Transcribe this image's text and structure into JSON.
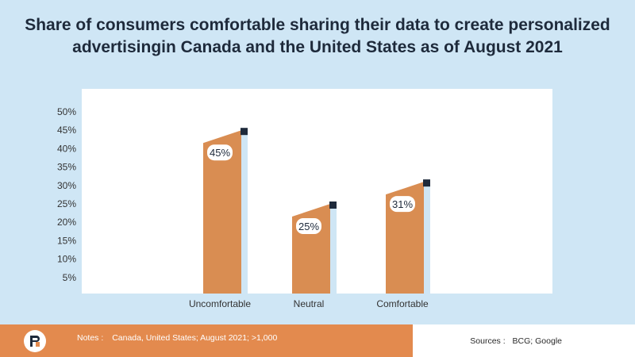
{
  "title_lines": [
    "Share of consumers comfortable sharing their data to create personalized",
    "advertisingin Canada and the United States as of August 2021"
  ],
  "chart_data": {
    "type": "bar",
    "title": "Share of consumers comfortable sharing their data to create personalized advertisingin Canada and the United States as of August 2021",
    "categories": [
      "Uncomfortable",
      "Neutral",
      "Comfortable"
    ],
    "values": [
      45,
      25,
      31
    ],
    "data_labels": [
      "45%",
      "25%",
      "31%"
    ],
    "y_ticks": [
      {
        "value": 5,
        "label": "5%"
      },
      {
        "value": 10,
        "label": "10%"
      },
      {
        "value": 15,
        "label": "15%"
      },
      {
        "value": 20,
        "label": "20%"
      },
      {
        "value": 25,
        "label": "25%"
      },
      {
        "value": 30,
        "label": "30%"
      },
      {
        "value": 35,
        "label": "35%"
      },
      {
        "value": 40,
        "label": "40%"
      },
      {
        "value": 45,
        "label": "45%"
      },
      {
        "value": 50,
        "label": "50%"
      }
    ],
    "ylim": [
      0,
      50
    ],
    "xlabel": "",
    "ylabel": "",
    "grid": false,
    "colors": {
      "bar": "#d98d52",
      "bar_shadow": "#cfe6f5",
      "marker": "#1e2a3b",
      "plot_bg": "#ffffff",
      "page_bg": "#cfe6f5"
    }
  },
  "footer": {
    "notes_label": "Notes :",
    "notes_text": "Canada, United States; August 2021; >1,000",
    "sources_label": "Sources :",
    "sources_text": "BCG; Google",
    "bar_color": "#e38a4e",
    "logo_icon": "logo-icon"
  }
}
